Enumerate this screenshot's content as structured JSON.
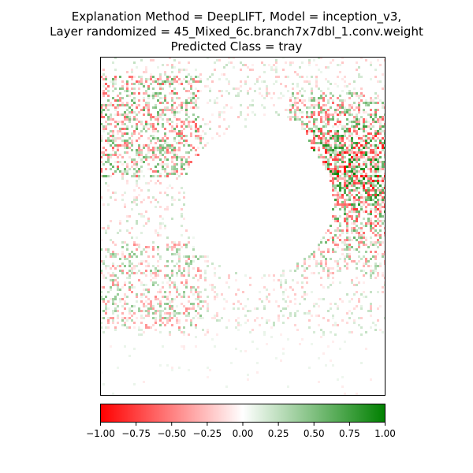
{
  "title_lines": [
    "Explanation Method = DeepLIFT, Model = inception_v3,",
    "Layer randomized = 45_Mixed_6c.branch7x7dbl_1.conv.weight",
    "Predicted Class = tray"
  ],
  "colors": {
    "negative": "#ff0000",
    "zero": "#ffffff",
    "positive": "#008000"
  },
  "chart_data": {
    "type": "heatmap",
    "title": "Explanation Method = DeepLIFT, Model = inception_v3,\nLayer randomized = 45_Mixed_6c.branch7x7dbl_1.conv.weight\nPredicted Class = tray",
    "xlabel": "",
    "ylabel": "",
    "axis_ticks_visible": false,
    "colormap": "red-white-green (diverging)",
    "colorbar": {
      "orientation": "horizontal",
      "placement": "bottom",
      "vmin": -1.0,
      "vmax": 1.0,
      "ticks": [
        -1.0,
        -0.75,
        -0.5,
        -0.25,
        0.0,
        0.25,
        0.5,
        0.75,
        1.0
      ],
      "tick_labels": [
        "−1.00",
        "−0.75",
        "−0.50",
        "−0.25",
        "0.00",
        "0.25",
        "0.50",
        "0.75",
        "1.00"
      ]
    }
  }
}
